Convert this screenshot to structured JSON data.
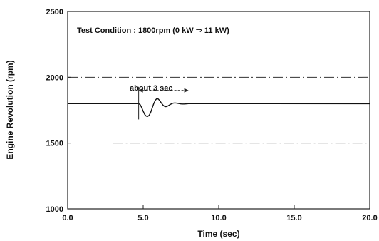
{
  "chart_data": {
    "type": "line",
    "title": "",
    "xlabel": "Time (sec)",
    "ylabel": "Engine Revolution (rpm)",
    "xlim": [
      0,
      20
    ],
    "ylim": [
      1000,
      2500
    ],
    "xticks": [
      0,
      5,
      10,
      15,
      20
    ],
    "xtick_labels": [
      "0.0",
      "5.0",
      "10.0",
      "15.0",
      "20.0"
    ],
    "yticks": [
      1000,
      1500,
      2000,
      2500
    ],
    "ytick_labels": [
      "1000",
      "1500",
      "2000",
      "2500"
    ],
    "grid": false,
    "legend": "none",
    "series": [
      {
        "x": [
          0,
          4.7,
          4.8,
          4.9,
          5.0,
          5.1,
          5.2,
          5.3,
          5.4,
          5.5,
          5.6,
          5.7,
          5.8,
          5.9,
          6.0,
          6.1,
          6.2,
          6.3,
          6.4,
          6.5,
          6.6,
          6.7,
          6.8,
          6.9,
          7.0,
          7.1,
          7.2,
          7.3,
          7.4,
          7.5,
          7.6,
          7.7,
          7.8,
          8.0,
          8.2,
          8.4,
          8.6,
          20
        ],
        "y": [
          1800,
          1800,
          1792,
          1770,
          1742,
          1718,
          1705,
          1703,
          1712,
          1735,
          1768,
          1800,
          1825,
          1838,
          1835,
          1822,
          1805,
          1790,
          1780,
          1777,
          1780,
          1787,
          1794,
          1800,
          1804,
          1805,
          1804,
          1802,
          1800,
          1798,
          1797,
          1797,
          1798,
          1800,
          1800,
          1800,
          1800,
          1799
        ]
      }
    ],
    "reference_lines": [
      {
        "y": 2000,
        "style": "dash-dot",
        "x": [
          0,
          20
        ]
      },
      {
        "y": 1500,
        "style": "dash-dot",
        "x": [
          3,
          20
        ]
      }
    ],
    "annotations": {
      "condition": "Test Condition : 1800rpm (0 kW ⇒ 11 kW)",
      "duration": "about 3 sec",
      "duration_span": [
        4.7,
        8.0
      ],
      "duration_y": 1900
    }
  }
}
